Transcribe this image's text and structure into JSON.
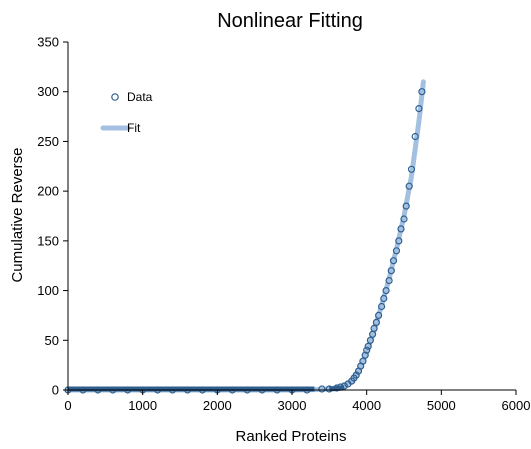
{
  "chart_data": {
    "type": "scatter",
    "title": "Nonlinear Fitting",
    "xlabel": "Ranked Proteins",
    "ylabel": "Cumulative Reverse",
    "xlim": [
      0,
      6000
    ],
    "ylim": [
      0,
      350
    ],
    "xticks": [
      "0",
      "1000",
      "2000",
      "3000",
      "4000",
      "5000",
      "6000"
    ],
    "yticks": [
      "0",
      "50",
      "100",
      "150",
      "200",
      "250",
      "300",
      "350"
    ],
    "grid": false,
    "legend_position": "top-left",
    "series": [
      {
        "name": "Data",
        "style": "markers",
        "color": "#2e5f8f",
        "x": [
          0,
          200,
          400,
          600,
          800,
          1000,
          1200,
          1400,
          1600,
          1800,
          2000,
          2200,
          2400,
          2600,
          2800,
          3000,
          3200,
          3400,
          3500,
          3600,
          3650,
          3700,
          3750,
          3800,
          3830,
          3860,
          3890,
          3920,
          3950,
          3980,
          4000,
          4020,
          4050,
          4080,
          4100,
          4130,
          4160,
          4200,
          4230,
          4260,
          4300,
          4330,
          4360,
          4400,
          4430,
          4460,
          4500,
          4530,
          4570,
          4600,
          4650,
          4700,
          4740
        ],
        "y": [
          0,
          0,
          0,
          0,
          0,
          0,
          0,
          0,
          0,
          0,
          0,
          0,
          0,
          0,
          0,
          0,
          0,
          1,
          1,
          2,
          3,
          4,
          6,
          9,
          12,
          15,
          19,
          24,
          29,
          35,
          40,
          44,
          50,
          56,
          62,
          68,
          75,
          84,
          92,
          100,
          110,
          120,
          130,
          140,
          150,
          162,
          172,
          185,
          205,
          222,
          255,
          283,
          300
        ]
      },
      {
        "name": "Fit",
        "style": "line",
        "color": "#a3c0e0",
        "x": [
          0,
          1000,
          2000,
          3000,
          3400,
          3600,
          3700,
          3800,
          3900,
          4000,
          4100,
          4200,
          4300,
          4400,
          4500,
          4600,
          4700,
          4760
        ],
        "y": [
          0,
          0,
          0,
          0,
          0.5,
          2,
          4,
          9,
          20,
          38,
          60,
          85,
          112,
          142,
          175,
          215,
          270,
          310
        ]
      }
    ]
  }
}
